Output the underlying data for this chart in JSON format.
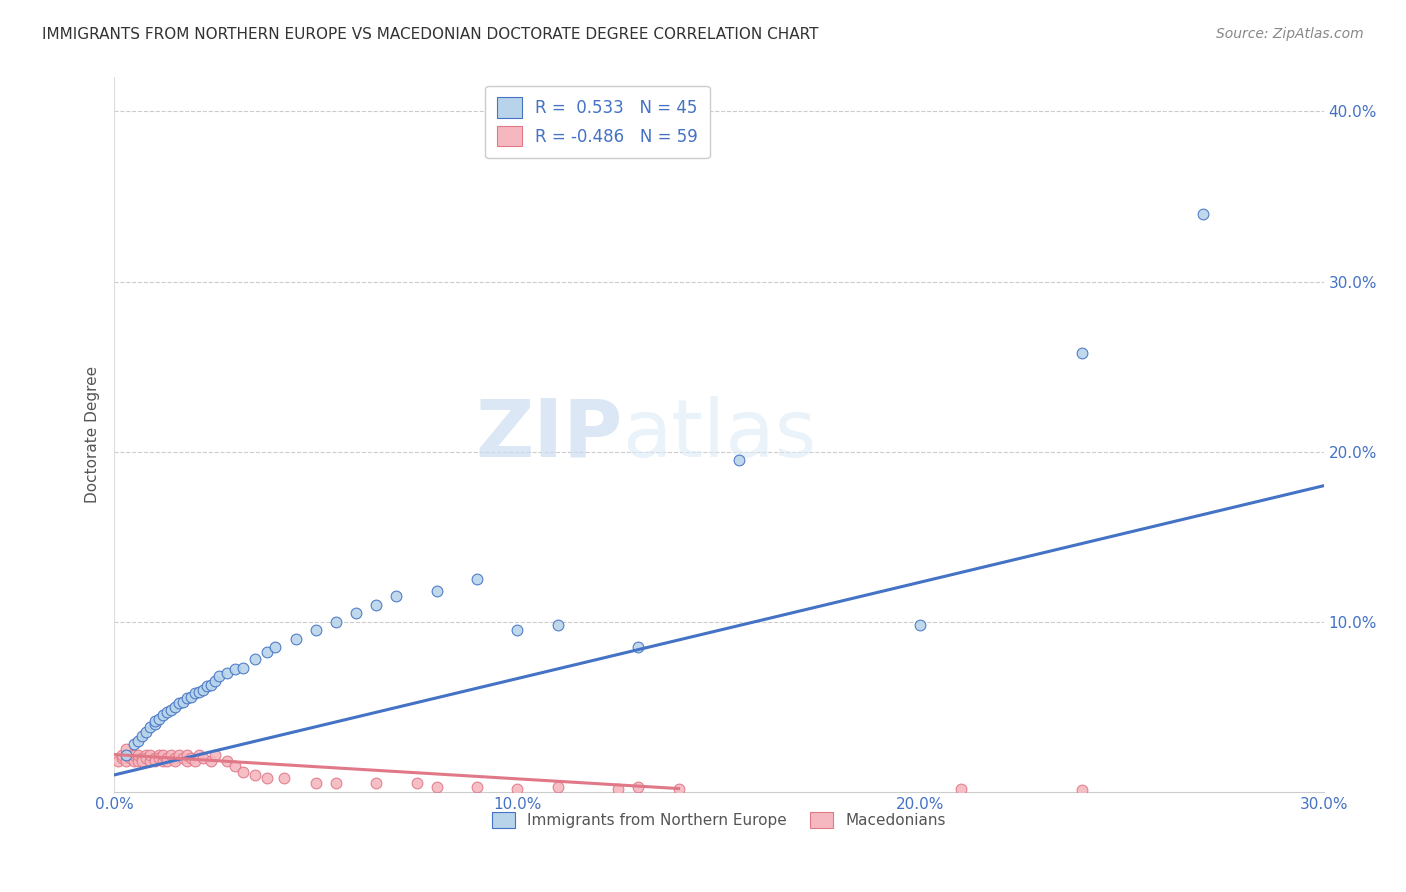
{
  "title": "IMMIGRANTS FROM NORTHERN EUROPE VS MACEDONIAN DOCTORATE DEGREE CORRELATION CHART",
  "source": "Source: ZipAtlas.com",
  "ylabel": "Doctorate Degree",
  "xlim": [
    0.0,
    0.3
  ],
  "ylim": [
    0.0,
    0.42
  ],
  "xtick_labels": [
    "0.0%",
    "10.0%",
    "20.0%",
    "30.0%"
  ],
  "xtick_vals": [
    0.0,
    0.1,
    0.2,
    0.3
  ],
  "ytick_labels": [
    "10.0%",
    "20.0%",
    "30.0%",
    "40.0%"
  ],
  "ytick_vals": [
    0.1,
    0.2,
    0.3,
    0.4
  ],
  "blue_R": 0.533,
  "blue_N": 45,
  "pink_R": -0.486,
  "pink_N": 59,
  "blue_color": "#b8d4ea",
  "pink_color": "#f5b8c0",
  "blue_line_color": "#4472c4",
  "pink_line_color": "#e07888",
  "watermark_zip": "ZIP",
  "watermark_atlas": "atlas",
  "legend_label_blue": "Immigrants from Northern Europe",
  "legend_label_pink": "Macedonians",
  "blue_x": [
    0.003,
    0.005,
    0.006,
    0.007,
    0.008,
    0.009,
    0.01,
    0.01,
    0.011,
    0.012,
    0.013,
    0.014,
    0.015,
    0.016,
    0.017,
    0.018,
    0.019,
    0.02,
    0.021,
    0.022,
    0.023,
    0.024,
    0.025,
    0.026,
    0.028,
    0.03,
    0.032,
    0.035,
    0.038,
    0.04,
    0.045,
    0.05,
    0.055,
    0.06,
    0.065,
    0.07,
    0.08,
    0.09,
    0.1,
    0.11,
    0.13,
    0.155,
    0.2,
    0.24,
    0.27
  ],
  "blue_y": [
    0.022,
    0.028,
    0.03,
    0.033,
    0.035,
    0.038,
    0.04,
    0.042,
    0.043,
    0.045,
    0.047,
    0.048,
    0.05,
    0.052,
    0.053,
    0.055,
    0.056,
    0.058,
    0.059,
    0.06,
    0.062,
    0.063,
    0.065,
    0.068,
    0.07,
    0.072,
    0.073,
    0.078,
    0.082,
    0.085,
    0.09,
    0.095,
    0.1,
    0.105,
    0.11,
    0.115,
    0.118,
    0.125,
    0.095,
    0.098,
    0.085,
    0.195,
    0.098,
    0.258,
    0.34
  ],
  "pink_x": [
    0.001,
    0.002,
    0.002,
    0.003,
    0.003,
    0.004,
    0.004,
    0.005,
    0.005,
    0.005,
    0.006,
    0.006,
    0.006,
    0.007,
    0.007,
    0.008,
    0.008,
    0.009,
    0.009,
    0.01,
    0.01,
    0.011,
    0.011,
    0.012,
    0.012,
    0.013,
    0.013,
    0.014,
    0.015,
    0.015,
    0.016,
    0.017,
    0.018,
    0.018,
    0.019,
    0.02,
    0.021,
    0.022,
    0.024,
    0.025,
    0.028,
    0.03,
    0.032,
    0.035,
    0.038,
    0.042,
    0.05,
    0.055,
    0.065,
    0.075,
    0.08,
    0.09,
    0.1,
    0.11,
    0.125,
    0.13,
    0.14,
    0.21,
    0.24
  ],
  "pink_y": [
    0.018,
    0.02,
    0.022,
    0.018,
    0.025,
    0.02,
    0.022,
    0.02,
    0.018,
    0.022,
    0.02,
    0.018,
    0.022,
    0.02,
    0.018,
    0.022,
    0.02,
    0.018,
    0.022,
    0.02,
    0.018,
    0.022,
    0.02,
    0.018,
    0.022,
    0.02,
    0.018,
    0.022,
    0.02,
    0.018,
    0.022,
    0.02,
    0.018,
    0.022,
    0.02,
    0.018,
    0.022,
    0.02,
    0.018,
    0.022,
    0.018,
    0.015,
    0.012,
    0.01,
    0.008,
    0.008,
    0.005,
    0.005,
    0.005,
    0.005,
    0.003,
    0.003,
    0.002,
    0.003,
    0.002,
    0.003,
    0.002,
    0.002,
    0.001
  ],
  "blue_trend_x": [
    0.0,
    0.3
  ],
  "blue_trend_y": [
    0.01,
    0.18
  ],
  "pink_trend_x": [
    0.0,
    0.14
  ],
  "pink_trend_y": [
    0.022,
    0.002
  ]
}
